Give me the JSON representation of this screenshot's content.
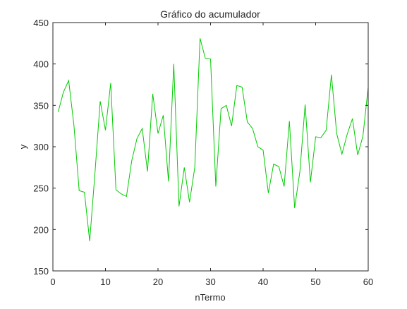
{
  "chart_data": {
    "type": "line",
    "title": "Gráfico do acumulador",
    "xlabel": "nTermo",
    "ylabel": "y",
    "xlim": [
      0,
      60
    ],
    "ylim": [
      150,
      450
    ],
    "xticks": [
      0,
      10,
      20,
      30,
      40,
      50,
      60
    ],
    "yticks": [
      150,
      200,
      250,
      300,
      350,
      400,
      450
    ],
    "grid": false,
    "box": true,
    "line_color": "#00cc00",
    "series": [
      {
        "x": [
          1,
          2,
          3,
          4,
          5,
          6,
          7,
          8,
          9,
          10,
          11,
          12,
          13,
          14,
          15,
          16,
          17,
          18,
          19,
          20,
          21,
          22,
          23,
          24,
          25,
          26,
          27,
          28,
          29,
          30,
          31,
          32,
          33,
          34,
          35,
          36,
          37,
          38,
          39,
          40,
          41,
          42,
          43,
          44,
          45,
          46,
          47,
          48,
          49,
          50,
          51,
          52,
          53,
          54,
          55,
          56,
          57,
          58,
          59,
          60
        ],
        "values": [
          342,
          366,
          380,
          326,
          247,
          245,
          186,
          268,
          355,
          320,
          377,
          248,
          243,
          240,
          283,
          310,
          322,
          270,
          364,
          316,
          338,
          258,
          400,
          228,
          275,
          233,
          275,
          431,
          407,
          406,
          252,
          346,
          350,
          325,
          374,
          372,
          330,
          322,
          300,
          296,
          244,
          279,
          276,
          252,
          331,
          226,
          270,
          351,
          257,
          312,
          311,
          320,
          387,
          316,
          291,
          315,
          334,
          290,
          313,
          372
        ]
      }
    ]
  }
}
